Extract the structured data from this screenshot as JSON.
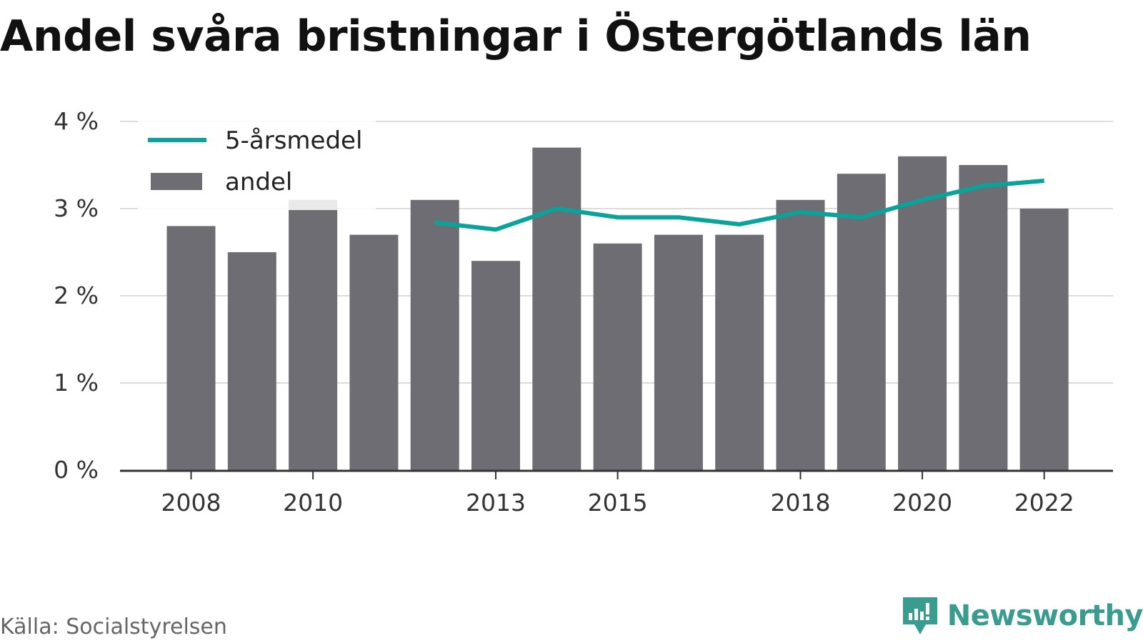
{
  "colors": {
    "bar": "#6e6d73",
    "line": "#0aa39b",
    "grid": "#dcdcdc",
    "axis": "#333333",
    "brand": "#3a9b8f"
  },
  "chart_data": {
    "type": "bar",
    "title": "Andel svåra bristningar i Östergötlands län",
    "xlabel": "",
    "ylabel": "",
    "ylim": [
      0,
      4
    ],
    "y_ticks": [
      "0 %",
      "1 %",
      "2 %",
      "3 %",
      "4 %"
    ],
    "x_ticks": [
      2008,
      2010,
      2013,
      2015,
      2018,
      2020,
      2022
    ],
    "categories": [
      2008,
      2009,
      2010,
      2011,
      2012,
      2013,
      2014,
      2015,
      2016,
      2017,
      2018,
      2019,
      2020,
      2021,
      2022
    ],
    "grid": true,
    "legend_position": "top-left",
    "series": [
      {
        "name": "andel",
        "type": "bar",
        "values": [
          2.8,
          2.5,
          3.1,
          2.7,
          3.1,
          2.4,
          3.7,
          2.6,
          2.7,
          2.7,
          3.1,
          3.4,
          3.6,
          3.5,
          3.0
        ]
      },
      {
        "name": "5-årsmedel",
        "type": "line",
        "values": [
          null,
          null,
          null,
          null,
          2.84,
          2.76,
          3.0,
          2.9,
          2.9,
          2.82,
          2.96,
          2.9,
          3.1,
          3.26,
          3.32
        ]
      }
    ]
  },
  "footer": {
    "source": "Källa: Socialstyrelsen",
    "brand": "Newsworthy"
  }
}
